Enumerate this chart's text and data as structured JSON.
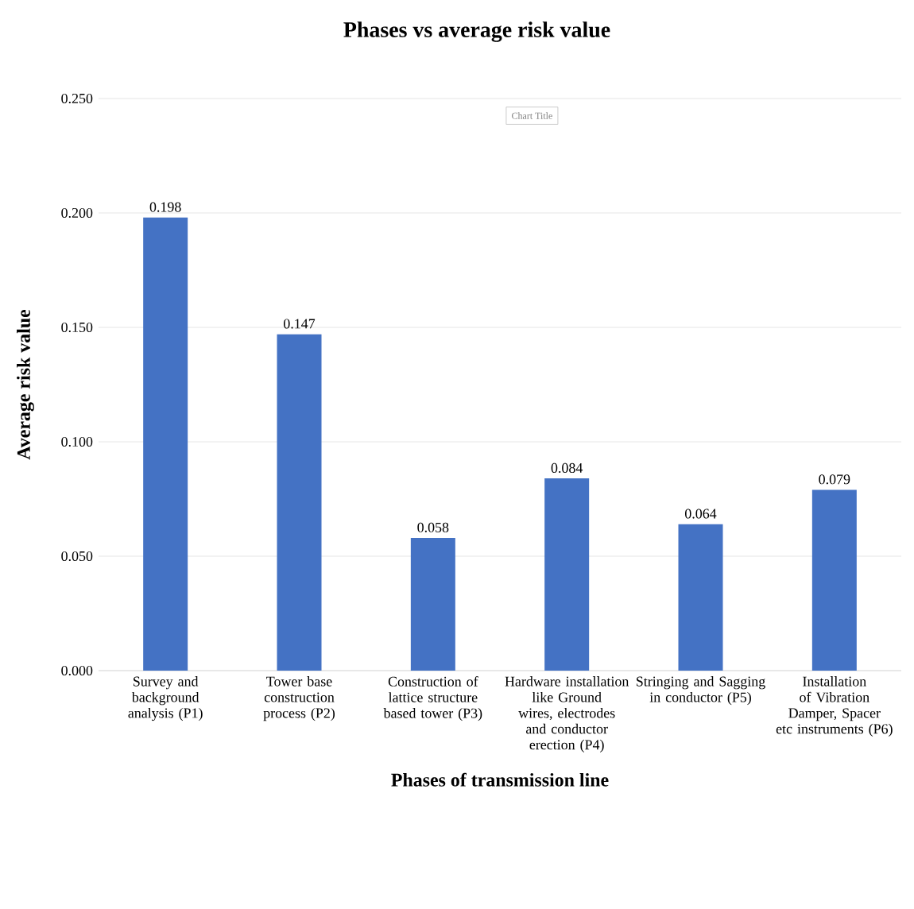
{
  "chart_data": {
    "type": "bar",
    "title": "Phases vs average risk value",
    "xlabel": "Phases of transmission line",
    "ylabel": "Average risk value",
    "categories": [
      "Survey and background analysis (P1)",
      "Tower base construction process (P2)",
      "Construction of lattice structure based tower (P3)",
      "Hardware installation like Ground wires, electrodes and conductor erection (P4)",
      "Stringing and Sagging in conductor (P5)",
      "Installation of Vibration Damper, Spacer etc instruments (P6)"
    ],
    "values": [
      0.198,
      0.147,
      0.058,
      0.084,
      0.064,
      0.079
    ],
    "color": "#4472c4",
    "ylim": [
      0,
      0.25
    ],
    "yticks": [
      {
        "value": 0,
        "label": "0.000"
      },
      {
        "value": 0.05,
        "label": "0.050"
      },
      {
        "value": 0.1,
        "label": "0.100"
      },
      {
        "value": 0.15,
        "label": "0.150"
      },
      {
        "value": 0.2,
        "label": "0.200"
      },
      {
        "value": 0.25,
        "label": "0.250"
      }
    ],
    "grid": "y",
    "data_labels": true,
    "annotations": [
      "Chart Title"
    ]
  }
}
